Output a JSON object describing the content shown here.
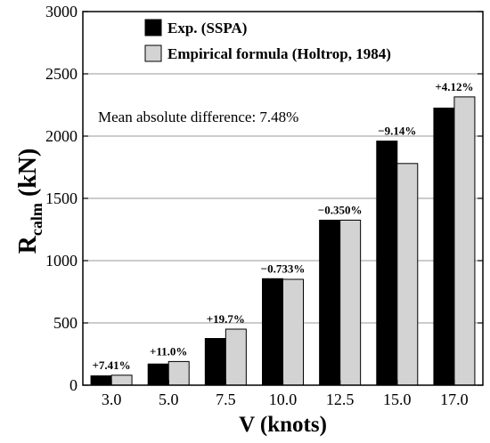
{
  "chart_data": {
    "type": "bar",
    "categories": [
      "3.0",
      "5.0",
      "7.5",
      "10.0",
      "12.5",
      "15.0",
      "17.0"
    ],
    "series": [
      {
        "name": "Exp. (SSPA)",
        "color": "#000000",
        "values": [
          75,
          170,
          375,
          855,
          1325,
          1960,
          2225
        ]
      },
      {
        "name": "Empirical formula (Holtrop, 1984)",
        "color": "#d3d3d3",
        "values": [
          80,
          190,
          450,
          850,
          1325,
          1780,
          2315
        ]
      }
    ],
    "bar_labels": [
      "+7.41%",
      "+11.0%",
      "+19.7%",
      "−0.733%",
      "−0.350%",
      "−9.14%",
      "+4.12%"
    ],
    "annotation": "Mean absolute difference: 7.48%",
    "xlabel": "V (knots)",
    "ylabel_main": "R",
    "ylabel_sub": "calm",
    "ylabel_unit": "(kN)",
    "ylim": [
      0,
      3000
    ],
    "yticks": [
      0,
      500,
      1000,
      1500,
      2000,
      2500,
      3000
    ],
    "grid": "horizontal",
    "legend_position": "top-left"
  }
}
